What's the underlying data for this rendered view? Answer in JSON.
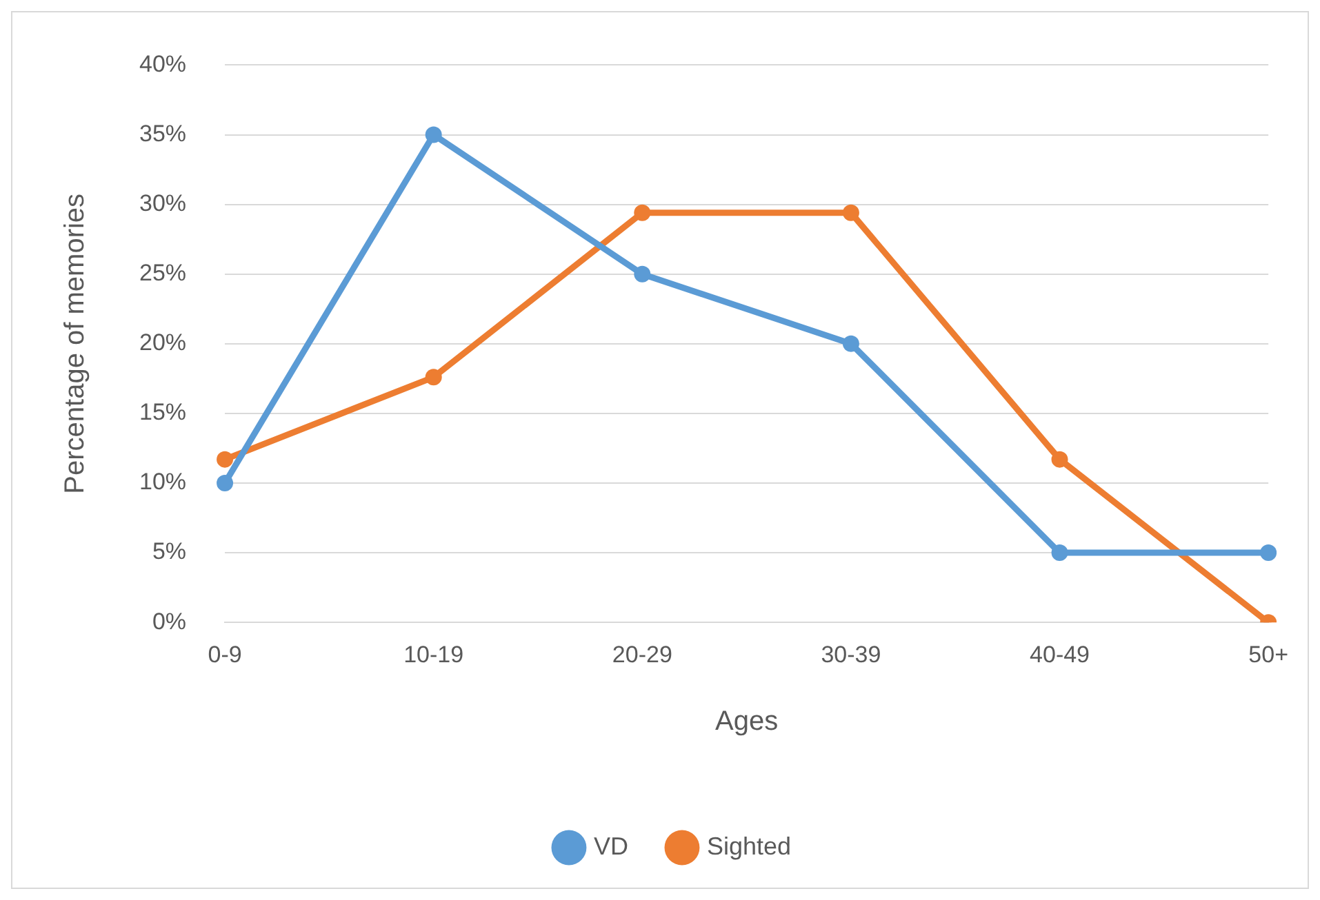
{
  "chart_data": {
    "type": "line",
    "xlabel": "Ages",
    "ylabel": "Percentage of memories",
    "categories": [
      "0-9",
      "10-19",
      "20-29",
      "30-39",
      "40-49",
      "50+"
    ],
    "series": [
      {
        "name": "VD",
        "color": "#5b9bd5",
        "values": [
          10,
          35,
          25,
          20,
          5,
          5
        ]
      },
      {
        "name": "Sighted",
        "color": "#ed7d31",
        "values": [
          11.7,
          17.6,
          29.4,
          29.4,
          11.7,
          0
        ]
      }
    ],
    "ylim": [
      0,
      40
    ],
    "yticks": [
      {
        "value": 0,
        "label": "0%"
      },
      {
        "value": 5,
        "label": "5%"
      },
      {
        "value": 10,
        "label": "10%"
      },
      {
        "value": 15,
        "label": "15%"
      },
      {
        "value": 20,
        "label": "20%"
      },
      {
        "value": 25,
        "label": "25%"
      },
      {
        "value": 30,
        "label": "30%"
      },
      {
        "value": 35,
        "label": "35%"
      },
      {
        "value": 40,
        "label": "40%"
      }
    ],
    "grid": "y",
    "legend": "bottom",
    "marker": "circle",
    "line_style": "solid"
  }
}
